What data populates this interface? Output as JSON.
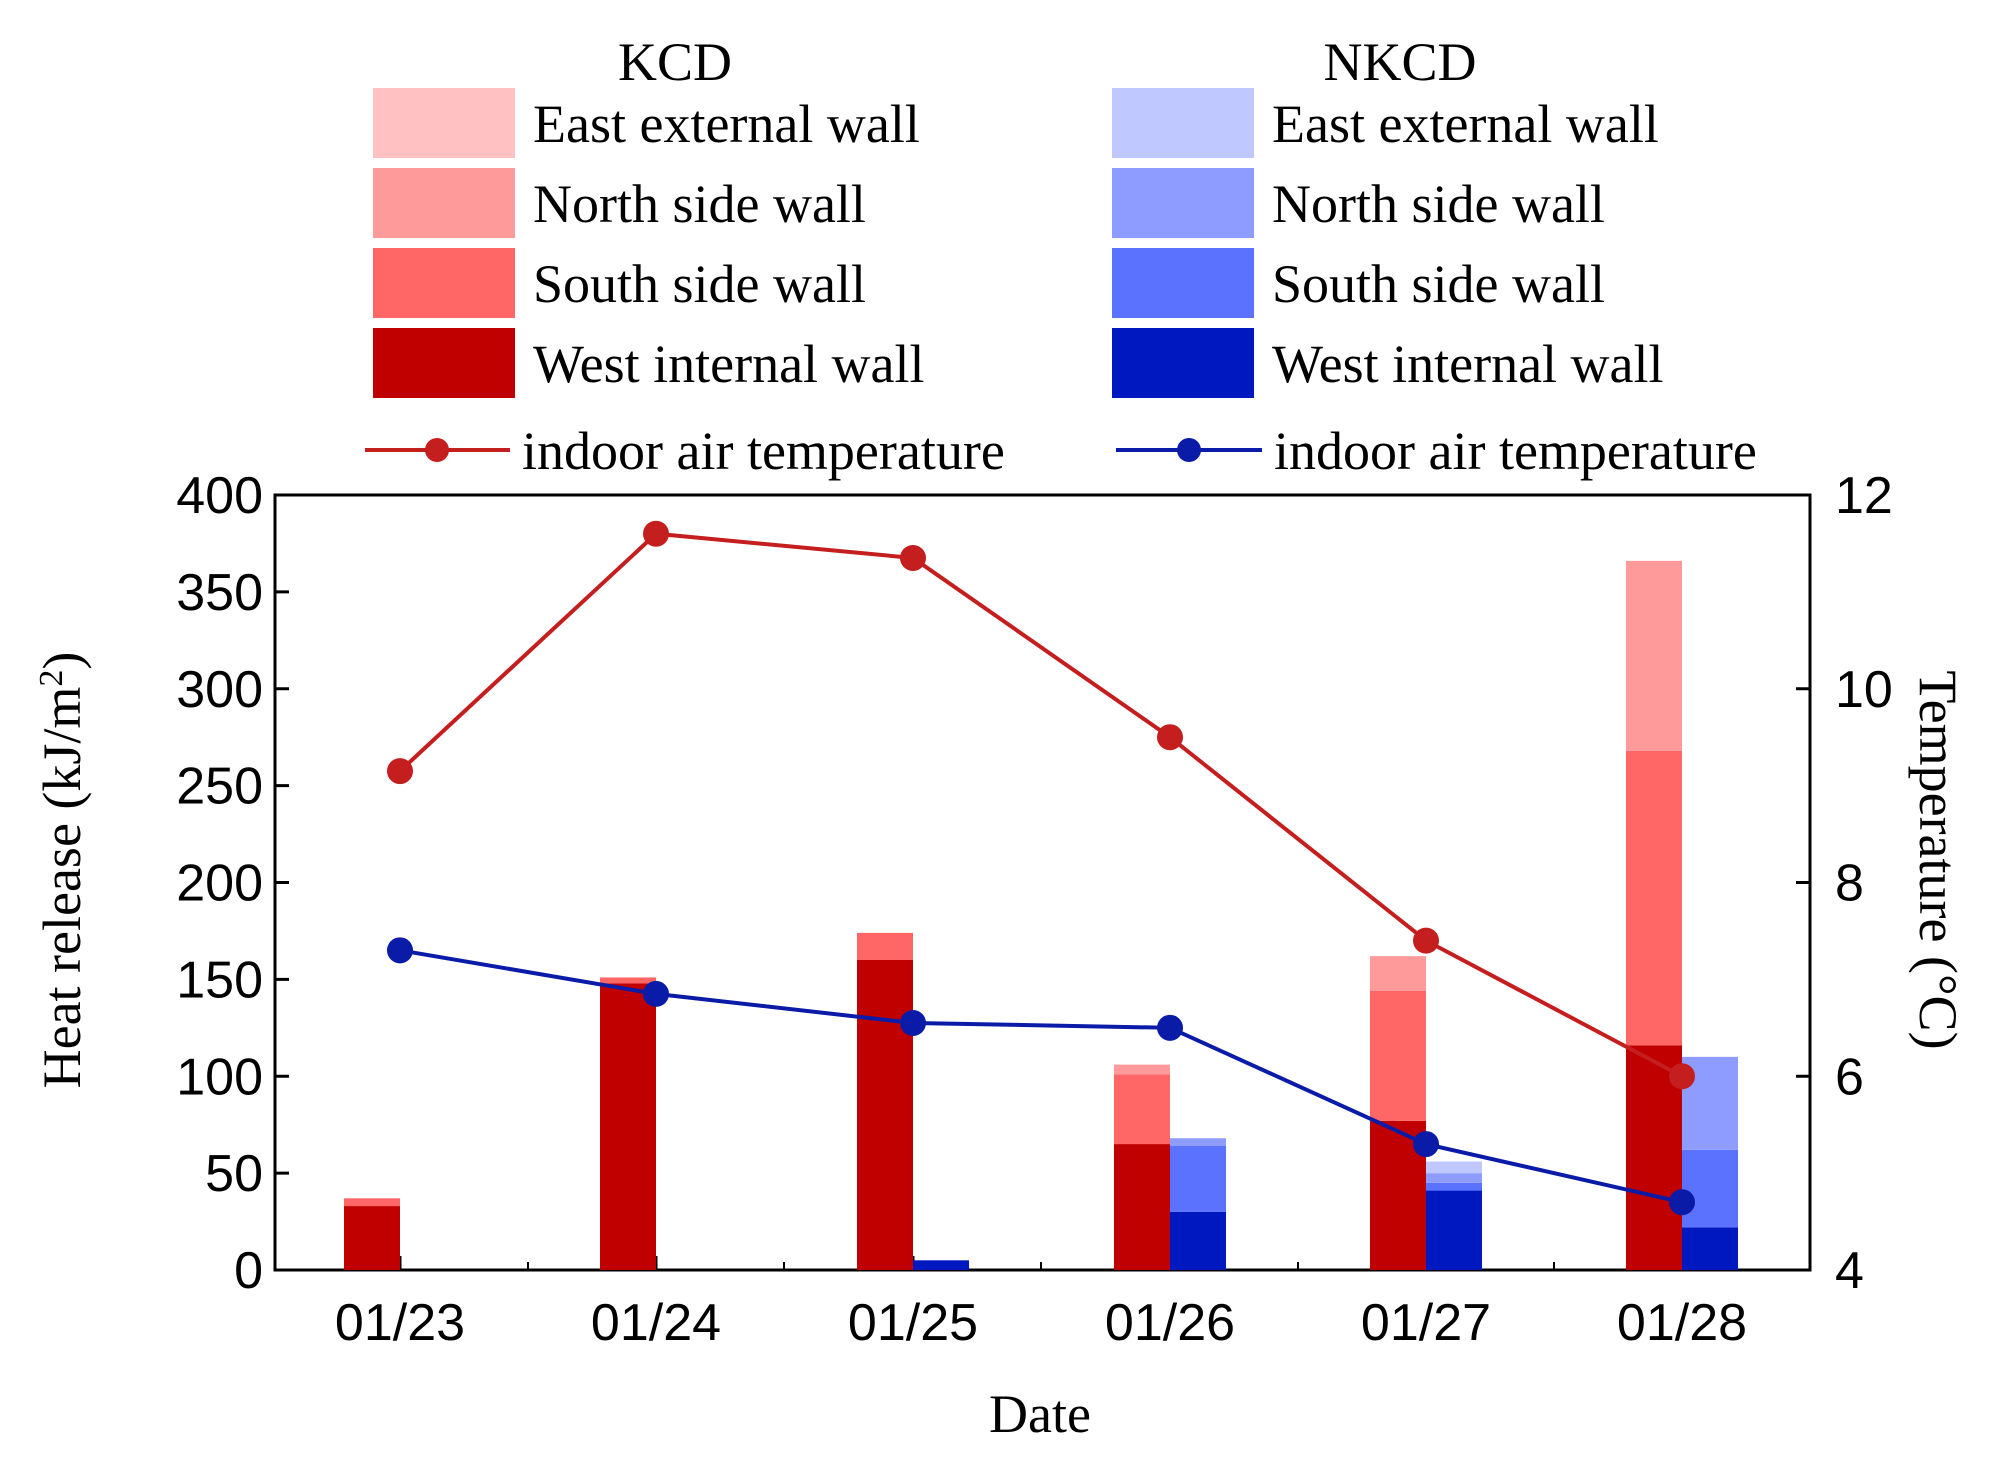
{
  "chart_data": {
    "type": "bar",
    "subtype": "grouped-stacked-bar-with-lines",
    "categories": [
      "01/23",
      "01/24",
      "01/25",
      "01/26",
      "01/27",
      "01/28"
    ],
    "xlabel": "Date",
    "ylabel_left": "Heat release (kJ/m",
    "ylabel_left_sup": "2",
    "ylabel_left_close": ")",
    "ylabel_right": "Temperature (°C)",
    "ylim_left": [
      0,
      400
    ],
    "ylim_right": [
      4,
      12
    ],
    "yticks_left": [
      0,
      50,
      100,
      150,
      200,
      250,
      300,
      350,
      400
    ],
    "yticks_right": [
      4,
      6,
      8,
      10,
      12
    ],
    "grid": false,
    "legend": {
      "position": "top",
      "groups": [
        {
          "title": "KCD",
          "items": [
            {
              "label": "East external wall",
              "color": "#FFC1C1"
            },
            {
              "label": "North side wall",
              "color": "#FF9A9A"
            },
            {
              "label": "South side wall",
              "color": "#FF6666"
            },
            {
              "label": "West internal wall",
              "color": "#C00000"
            }
          ],
          "line": {
            "label": "indoor air temperature",
            "color": "#C41E1E"
          }
        },
        {
          "title": "NKCD",
          "items": [
            {
              "label": "East external wall",
              "color": "#BFC8FF"
            },
            {
              "label": "North side wall",
              "color": "#8E9CFF"
            },
            {
              "label": "South side wall",
              "color": "#5A72FF"
            },
            {
              "label": "West internal wall",
              "color": "#0018BF"
            }
          ],
          "line": {
            "label": "indoor air temperature",
            "color": "#0A1BA8"
          }
        }
      ]
    },
    "bar_groups": [
      {
        "name": "KCD",
        "stack_order": [
          "West internal wall",
          "South side wall",
          "North side wall",
          "East external wall"
        ],
        "series": [
          {
            "name": "West internal wall",
            "color": "#C00000",
            "values": [
              33,
              148,
              160,
              65,
              77,
              116
            ]
          },
          {
            "name": "South side wall",
            "color": "#FF6666",
            "values": [
              4,
              3,
              14,
              36,
              67,
              152
            ]
          },
          {
            "name": "North side wall",
            "color": "#FF9A9A",
            "values": [
              0,
              0,
              0,
              5,
              18,
              98
            ]
          },
          {
            "name": "East external wall",
            "color": "#FFC1C1",
            "values": [
              0,
              0,
              0,
              0,
              0,
              0
            ]
          }
        ]
      },
      {
        "name": "NKCD",
        "stack_order": [
          "West internal wall",
          "South side wall",
          "North side wall",
          "East external wall"
        ],
        "series": [
          {
            "name": "West internal wall",
            "color": "#0018BF",
            "values": [
              0,
              0,
              5,
              30,
              41,
              22
            ]
          },
          {
            "name": "South side wall",
            "color": "#5A72FF",
            "values": [
              0,
              0,
              0,
              34,
              4,
              40
            ]
          },
          {
            "name": "North side wall",
            "color": "#8E9CFF",
            "values": [
              0,
              0,
              0,
              4,
              5,
              48
            ]
          },
          {
            "name": "East external wall",
            "color": "#BFC8FF",
            "values": [
              0,
              0,
              0,
              0,
              6,
              0
            ]
          }
        ]
      }
    ],
    "lines": [
      {
        "name": "KCD indoor air temperature",
        "color": "#C41E1E",
        "values": [
          9.15,
          11.6,
          11.35,
          9.5,
          7.4,
          6.0
        ]
      },
      {
        "name": "NKCD indoor air temperature",
        "color": "#0A1BA8",
        "values": [
          7.3,
          6.85,
          6.55,
          6.5,
          5.3,
          4.7
        ]
      }
    ]
  }
}
